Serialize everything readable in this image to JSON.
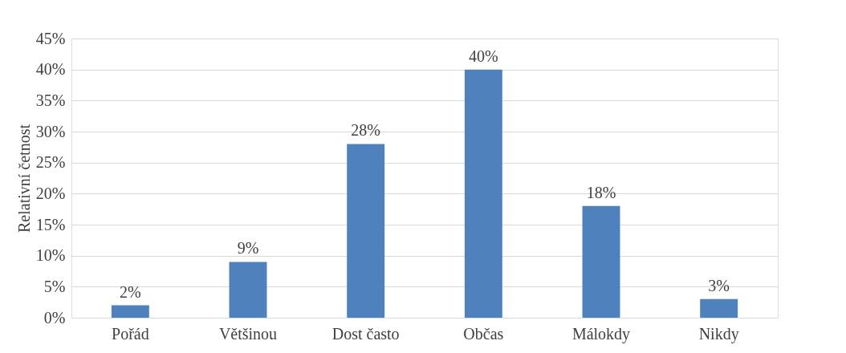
{
  "chart_data": {
    "type": "bar",
    "ylabel": "Relativní četnost",
    "categories": [
      "Pořád",
      "Většinou",
      "Dost často",
      "Občas",
      "Málokdy",
      "Nikdy"
    ],
    "values": [
      2,
      9,
      28,
      40,
      18,
      3
    ],
    "value_labels": [
      "2%",
      "9%",
      "28%",
      "40%",
      "18%",
      "3%"
    ],
    "color": "#4f81bd",
    "ylim": [
      0,
      45
    ],
    "yticks": [
      {
        "value": 0,
        "label": "0%"
      },
      {
        "value": 5,
        "label": "5%"
      },
      {
        "value": 10,
        "label": "10%"
      },
      {
        "value": 15,
        "label": "15%"
      },
      {
        "value": 20,
        "label": "20%"
      },
      {
        "value": 25,
        "label": "25%"
      },
      {
        "value": 30,
        "label": "30%"
      },
      {
        "value": 35,
        "label": "35%"
      },
      {
        "value": 40,
        "label": "40%"
      },
      {
        "value": 45,
        "label": "45%"
      }
    ],
    "grid": "y"
  }
}
